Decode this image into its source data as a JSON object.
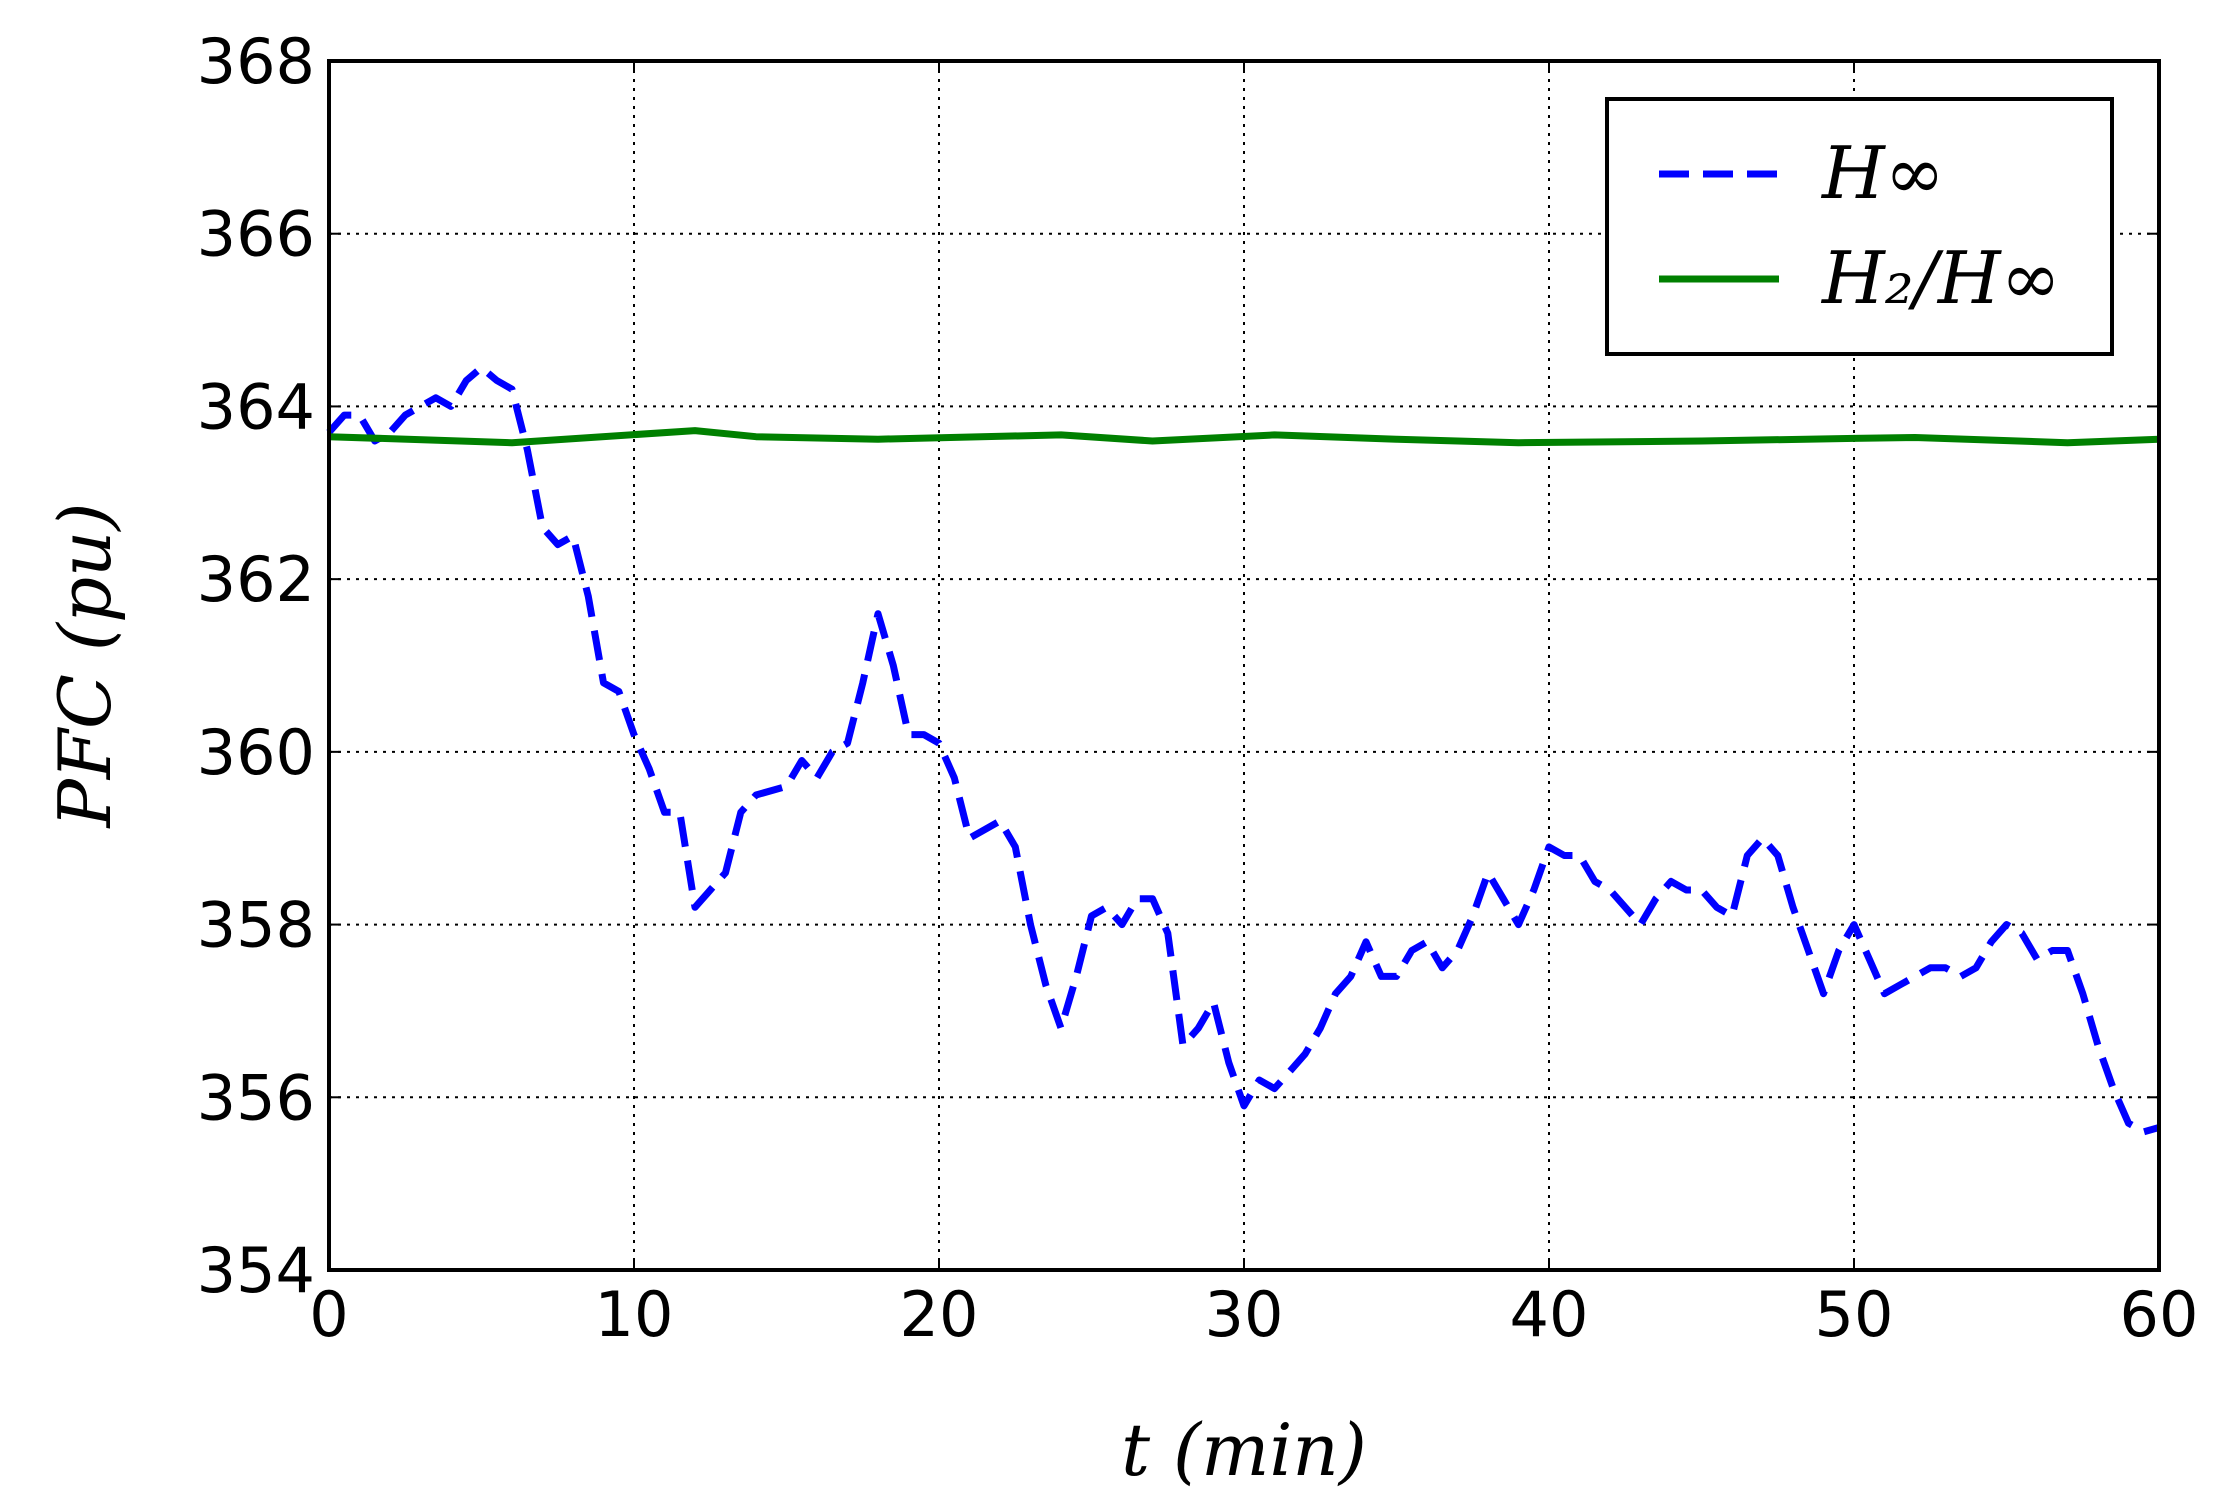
{
  "chart_data": {
    "type": "line",
    "xlabel": "t (min)",
    "ylabel": "PFC (pu)",
    "xlim": [
      0,
      60
    ],
    "xticks": [
      0,
      10,
      20,
      30,
      40,
      50,
      60
    ],
    "ylim": [
      354,
      368
    ],
    "yticks": [
      354,
      356,
      358,
      360,
      362,
      364,
      366,
      368
    ],
    "grid": true,
    "legend": "upper right",
    "series": [
      {
        "name": "H∞",
        "color": "#0000ff",
        "dash": "dashed",
        "x": [
          0,
          0.5,
          1,
          1.5,
          2,
          2.5,
          3,
          3.5,
          4,
          4.5,
          5,
          5.5,
          6,
          6.5,
          7,
          7.5,
          8,
          8.5,
          9,
          9.5,
          10,
          10.5,
          11,
          11.5,
          12,
          12.5,
          13,
          13.5,
          14,
          15,
          15.5,
          16,
          16.5,
          17,
          17.5,
          18,
          18.5,
          19,
          19.5,
          20,
          20.5,
          21,
          21.5,
          22,
          22.5,
          23,
          23.5,
          24,
          24.5,
          25,
          25.5,
          26,
          26.5,
          27,
          27.5,
          28,
          28.5,
          29,
          29.5,
          30,
          30.5,
          31,
          31.5,
          32,
          32.5,
          33,
          33.5,
          34,
          34.5,
          35,
          35.5,
          36,
          36.5,
          37,
          37.5,
          38,
          38.5,
          39,
          39.5,
          40,
          40.5,
          41,
          41.5,
          42,
          42.5,
          43,
          43.5,
          44,
          44.5,
          45,
          45.5,
          46,
          46.5,
          47,
          47.5,
          48,
          48.5,
          49,
          49.5,
          50,
          50.5,
          51,
          51.5,
          52,
          52.5,
          53,
          53.5,
          54,
          54.5,
          55,
          55.5,
          56,
          56.5,
          57,
          57.5,
          58,
          58.5,
          59,
          59.5,
          60
        ],
        "values": [
          363.7,
          363.9,
          363.9,
          363.6,
          363.7,
          363.9,
          364.0,
          364.1,
          364.0,
          364.3,
          364.45,
          364.3,
          364.2,
          363.5,
          362.6,
          362.4,
          362.5,
          361.8,
          360.8,
          360.7,
          360.2,
          359.8,
          359.3,
          359.3,
          358.2,
          358.4,
          358.6,
          359.3,
          359.5,
          359.6,
          359.9,
          359.7,
          360.0,
          360.1,
          360.8,
          361.6,
          361.0,
          360.2,
          360.2,
          360.1,
          359.7,
          359.0,
          359.1,
          359.2,
          358.9,
          358.0,
          357.3,
          356.8,
          357.4,
          358.1,
          358.2,
          358.0,
          358.3,
          358.3,
          357.9,
          356.6,
          356.8,
          357.1,
          356.4,
          355.9,
          356.2,
          356.1,
          356.3,
          356.5,
          356.8,
          357.2,
          357.4,
          357.8,
          357.4,
          357.4,
          357.7,
          357.8,
          357.5,
          357.7,
          358.1,
          358.6,
          358.3,
          358.0,
          358.4,
          358.9,
          358.8,
          358.8,
          358.5,
          358.4,
          358.2,
          358.0,
          358.3,
          358.5,
          358.4,
          358.4,
          358.2,
          358.1,
          358.8,
          359.0,
          358.8,
          358.2,
          357.7,
          357.2,
          357.7,
          358.0,
          357.6,
          357.2,
          357.3,
          357.4,
          357.5,
          357.5,
          357.4,
          357.5,
          357.8,
          358.0,
          357.9,
          357.6,
          357.7,
          357.7,
          357.2,
          356.6,
          356.1,
          355.7,
          355.6,
          355.65
        ]
      },
      {
        "name": "H₂/H∞",
        "color": "#008000",
        "dash": "solid",
        "x": [
          0,
          6,
          12,
          14,
          18,
          24,
          27,
          31,
          35,
          39,
          45,
          50,
          52,
          57,
          60
        ],
        "values": [
          363.65,
          363.58,
          363.72,
          363.65,
          363.62,
          363.67,
          363.6,
          363.67,
          363.62,
          363.58,
          363.6,
          363.63,
          363.64,
          363.58,
          363.62
        ]
      }
    ]
  }
}
